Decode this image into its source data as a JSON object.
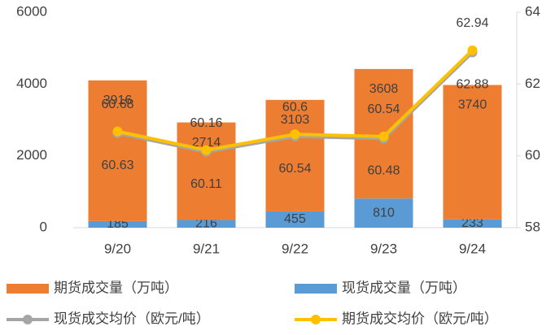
{
  "chart_data": {
    "type": "bar-line",
    "categories": [
      "9/20",
      "9/21",
      "9/22",
      "9/23",
      "9/24"
    ],
    "series": [
      {
        "name": "现货成交量（万吨）",
        "type": "bar",
        "color": "#5b9bd5",
        "values": [
          185,
          216,
          455,
          810,
          233
        ]
      },
      {
        "name": "期货成交量（万吨）",
        "type": "bar",
        "color": "#ed7d31",
        "values": [
          3916,
          2714,
          3103,
          3608,
          3740
        ]
      },
      {
        "name": "现货成交均价（欧元/吨）",
        "type": "line",
        "axis": "y2",
        "color": "#a5a5a5",
        "values": [
          60.63,
          60.11,
          60.54,
          60.48,
          62.88
        ]
      },
      {
        "name": "期货成交均价（欧元/吨）",
        "type": "line",
        "axis": "y2",
        "color": "#ffc000",
        "values": [
          60.68,
          60.16,
          60.6,
          60.54,
          62.94
        ]
      }
    ],
    "ylim": [
      0,
      6000
    ],
    "yticks": [
      0,
      2000,
      4000,
      6000
    ],
    "y2lim": [
      58,
      64
    ],
    "y2ticks": [
      58,
      60,
      62,
      64
    ]
  }
}
